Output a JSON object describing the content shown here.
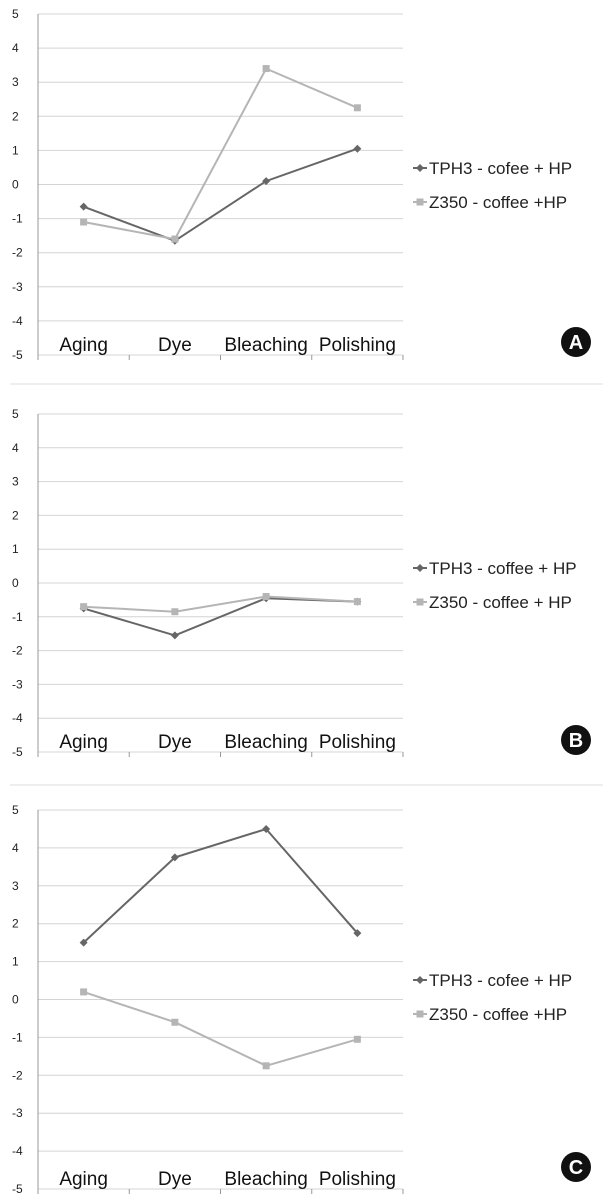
{
  "figure": {
    "panel_label_color": "#111111",
    "colors": {
      "tph3": "#666666",
      "z350": "#b5b5b5",
      "grid": "#d4d4d4",
      "axis": "#999999"
    }
  },
  "chart_data": [
    {
      "type": "line",
      "panel": "A",
      "categories": [
        "Aging",
        "Dye",
        "Bleaching",
        "Polishing"
      ],
      "ylim": [
        -5,
        5
      ],
      "yticks": [
        "5",
        "4",
        "3",
        "2",
        "1",
        "0",
        "-1",
        "-2",
        "-3",
        "-4",
        "-5"
      ],
      "grid": true,
      "legend_placement": "right",
      "series": [
        {
          "name": "TPH3 - cofee + HP",
          "marker": "diamond",
          "values": [
            -0.65,
            -1.65,
            0.1,
            1.05
          ]
        },
        {
          "name": "Z350 - coffee +HP",
          "marker": "square",
          "values": [
            -1.1,
            -1.6,
            3.4,
            2.25
          ]
        }
      ]
    },
    {
      "type": "line",
      "panel": "B",
      "categories": [
        "Aging",
        "Dye",
        "Bleaching",
        "Polishing"
      ],
      "ylim": [
        -5,
        5
      ],
      "yticks": [
        "5",
        "4",
        "3",
        "2",
        "1",
        "0",
        "-1",
        "-2",
        "-3",
        "-4",
        "-5"
      ],
      "grid": true,
      "legend_placement": "right",
      "series": [
        {
          "name": "TPH3 - coffee + HP",
          "marker": "diamond",
          "values": [
            -0.75,
            -1.55,
            -0.45,
            -0.55
          ]
        },
        {
          "name": "Z350 - coffee + HP",
          "marker": "square",
          "values": [
            -0.7,
            -0.85,
            -0.4,
            -0.55
          ]
        }
      ]
    },
    {
      "type": "line",
      "panel": "C",
      "categories": [
        "Aging",
        "Dye",
        "Bleaching",
        "Polishing"
      ],
      "ylim": [
        -5,
        5
      ],
      "yticks": [
        "5",
        "4",
        "3",
        "2",
        "1",
        "0",
        "-1",
        "-2",
        "-3",
        "-4",
        "-5"
      ],
      "grid": true,
      "legend_placement": "right",
      "series": [
        {
          "name": "TPH3 - cofee + HP",
          "marker": "diamond",
          "values": [
            1.5,
            3.75,
            4.5,
            1.75
          ]
        },
        {
          "name": "Z350 - coffee +HP",
          "marker": "square",
          "values": [
            0.2,
            -0.6,
            -1.75,
            -1.05
          ]
        }
      ]
    }
  ]
}
